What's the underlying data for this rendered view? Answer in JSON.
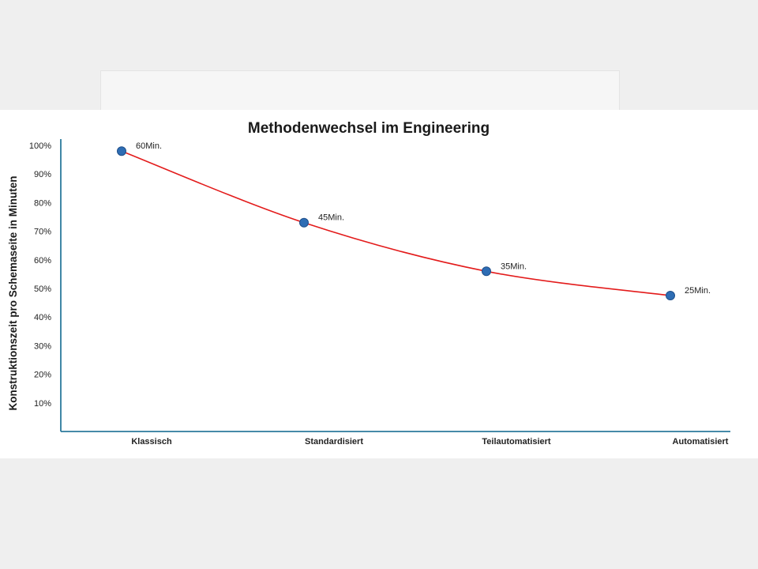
{
  "chart_data": {
    "type": "line",
    "title": "Methodenwechsel im Engineering",
    "ylabel": "Konstruktionszeit pro Schemaseite in Minuten",
    "xlabel": "",
    "categories": [
      "Klassisch",
      "Standardisiert",
      "Teilautomatisiert",
      "Automatisiert"
    ],
    "values": [
      98,
      73,
      56,
      47.5
    ],
    "data_labels": [
      "60Min.",
      "45Min.",
      "35Min.",
      "25Min."
    ],
    "yticks": [
      "10%",
      "20%",
      "30%",
      "40%",
      "50%",
      "60%",
      "70%",
      "80%",
      "90%",
      "100%"
    ],
    "ylim": [
      0,
      100
    ],
    "grid": false,
    "legend": "none",
    "colors": {
      "line": "#e31b1b",
      "marker_fill": "#2e6db4",
      "marker_stroke": "#1f4f8a",
      "axis": "#2b7a9c"
    }
  }
}
